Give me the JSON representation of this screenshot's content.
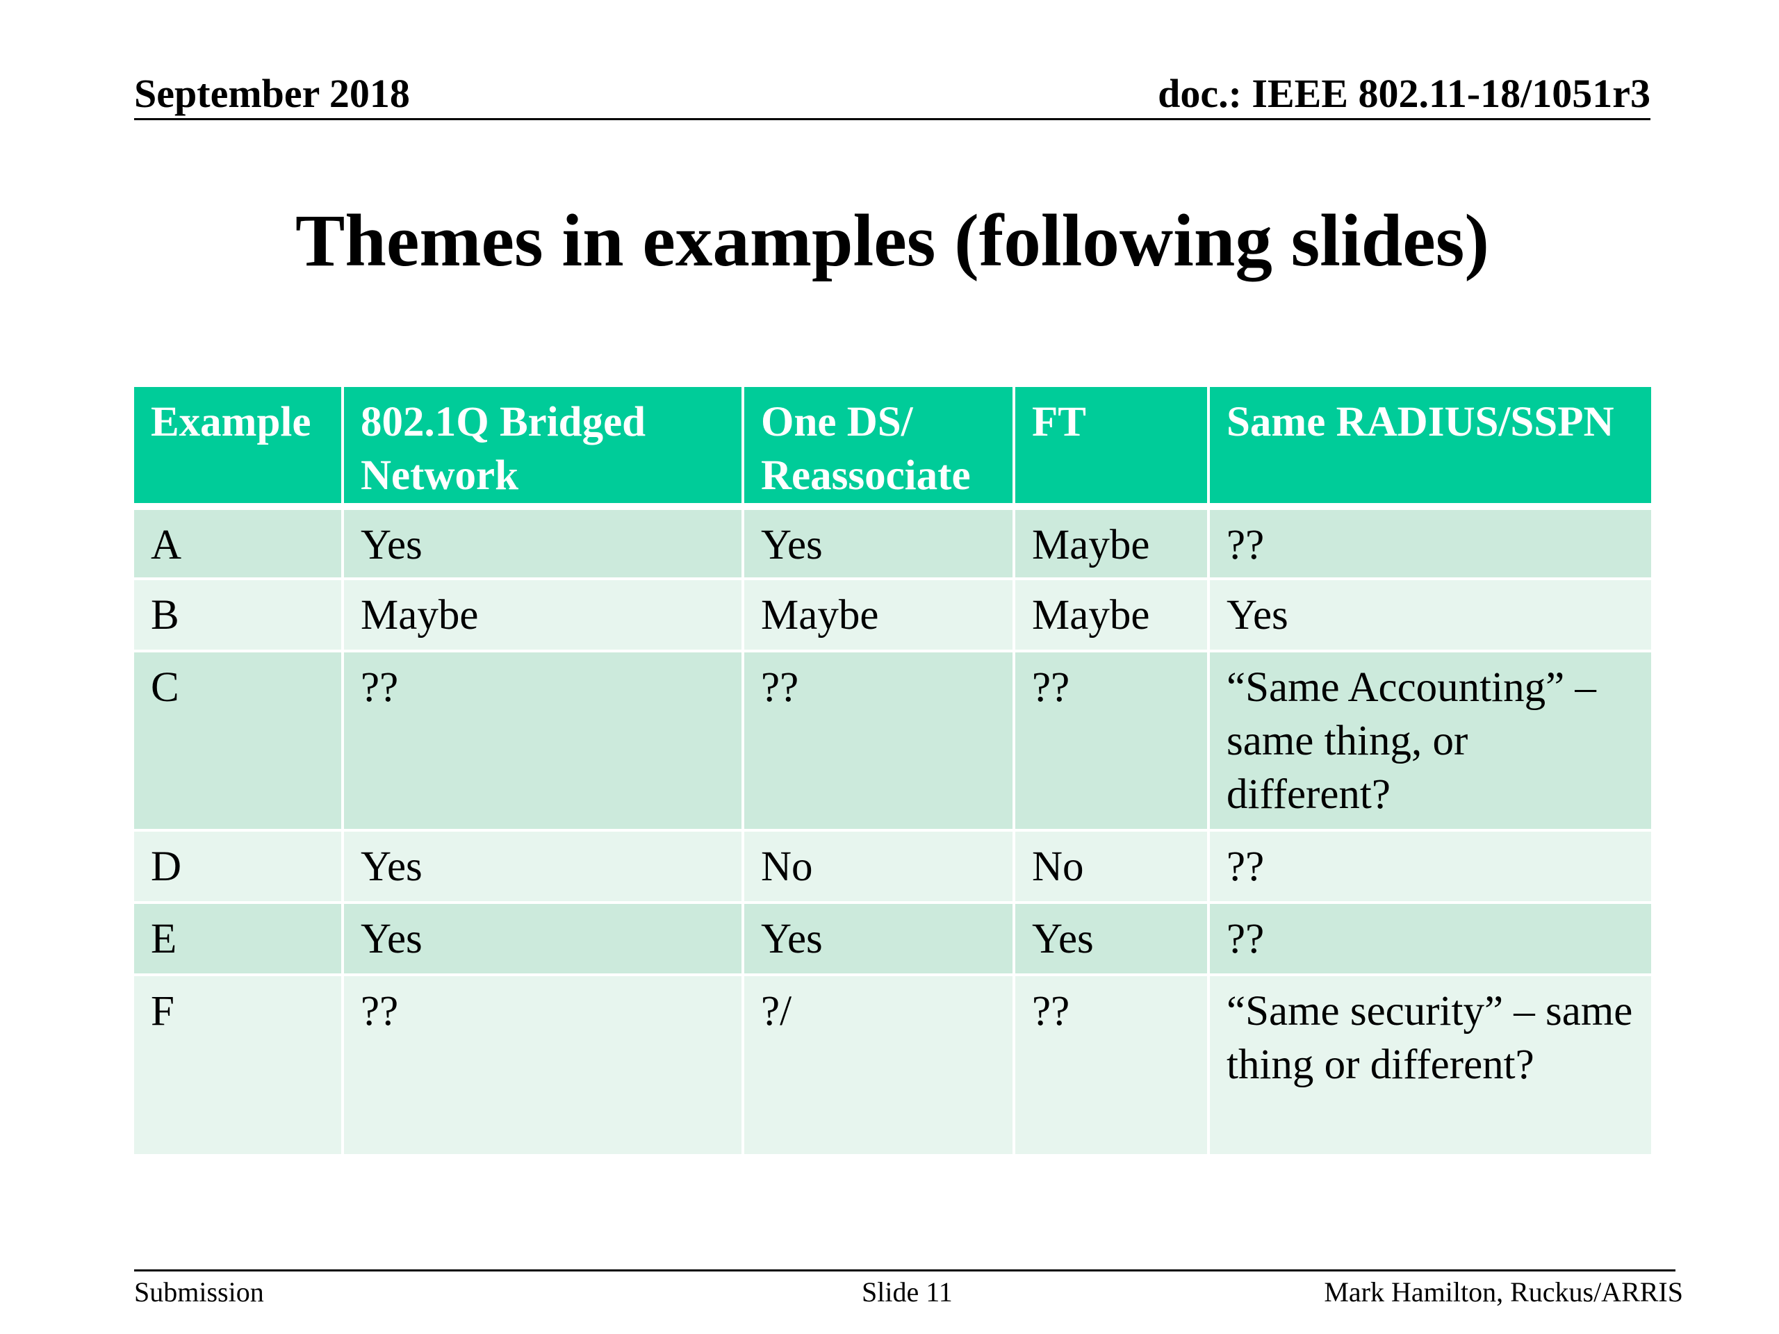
{
  "header": {
    "date": "September 2018",
    "doc": "doc.: IEEE 802.11-18/1051r3"
  },
  "title": "Themes in examples (following slides)",
  "table": {
    "columns": [
      "Example",
      "802.1Q Bridged Network",
      "One DS/ Reassociate",
      "FT",
      "Same RADIUS/SSPN"
    ],
    "rows": [
      [
        "A",
        "Yes",
        "Yes",
        "Maybe",
        "??"
      ],
      [
        "B",
        "Maybe",
        "Maybe",
        "Maybe",
        "Yes"
      ],
      [
        "C",
        "??",
        "??",
        "??",
        "“Same Accounting” – same thing, or different?"
      ],
      [
        "D",
        "Yes",
        "No",
        "No",
        "??"
      ],
      [
        "E",
        "Yes",
        "Yes",
        "Yes",
        "??"
      ],
      [
        "F",
        "??",
        "?/",
        "??",
        "“Same security” – same thing or different?"
      ]
    ]
  },
  "footer": {
    "left": "Submission",
    "center": "Slide 11",
    "right": "Mark Hamilton, Ruckus/ARRIS"
  }
}
